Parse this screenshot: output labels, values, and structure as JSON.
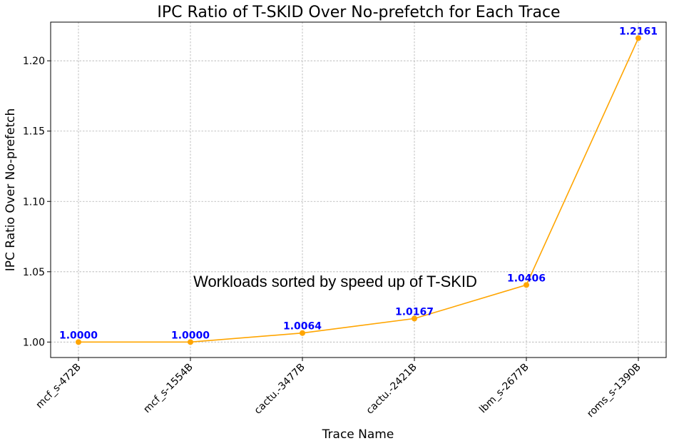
{
  "chart_data": {
    "type": "line",
    "title": "IPC Ratio of T-SKID Over No-prefetch for Each Trace",
    "xlabel": "Trace Name",
    "ylabel": "IPC Ratio Over No-prefetch",
    "categories": [
      "mcf_s-472B",
      "mcf_s-1554B",
      "cactu.-3477B",
      "cactu.-2421B",
      "lbm_s-2677B",
      "roms_s-1390B"
    ],
    "series": [
      {
        "values": [
          1.0,
          1.0,
          1.0064,
          1.0167,
          1.0406,
          1.2161
        ],
        "color": "#ffa500"
      }
    ],
    "data_labels": [
      "1.0000",
      "1.0000",
      "1.0064",
      "1.0167",
      "1.0406",
      "1.2161"
    ],
    "data_label_color": "#0000ff",
    "ylim": [
      0.989,
      1.2275
    ],
    "yticks": [
      1.0,
      1.05,
      1.1,
      1.15,
      1.2
    ],
    "ytick_labels": [
      "1.00",
      "1.05",
      "1.10",
      "1.15",
      "1.20"
    ],
    "annotation": "Workloads sorted by speed up of T-SKID",
    "grid": true
  }
}
